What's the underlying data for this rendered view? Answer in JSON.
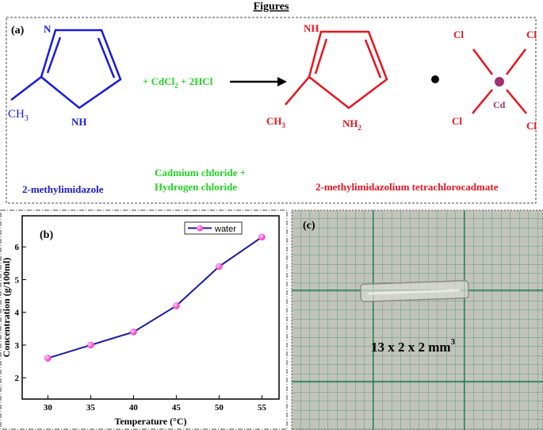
{
  "header": {
    "title": "Figures"
  },
  "panel_a": {
    "label": "(a)",
    "reactant": {
      "n": "N",
      "nh": "NH",
      "ch3": {
        "main": "CH",
        "sub": "3"
      },
      "caption": "2-methylimidazole"
    },
    "reagent": {
      "prefix": "+ CdCl",
      "sub": "2",
      "suffix": " + 2HCl",
      "caption_1": "Cadmium chloride +",
      "caption_2": "Hydrogen chloride"
    },
    "product": {
      "nh": "NH",
      "ch3": {
        "main": "CH",
        "sub": "3"
      },
      "nh2": {
        "main": "NH",
        "sub": "2"
      },
      "cl": [
        "Cl",
        "Cl",
        "Cl",
        "Cl"
      ],
      "cd": "Cd",
      "caption": "2-methylimidazolium tetrachlorocadmate"
    }
  },
  "chart_data": {
    "type": "line",
    "label": "(b)",
    "x_label": "Temperature (°C)",
    "y_label": "Concentration (g/100ml)",
    "series": [
      {
        "name": "water",
        "color": "#1a1aa0",
        "marker_color": "#ff33cc",
        "x": [
          30,
          35,
          40,
          45,
          50,
          55
        ],
        "values": [
          2.6,
          3.0,
          3.4,
          4.2,
          5.4,
          6.3
        ]
      }
    ],
    "xlim": [
      27,
      57
    ],
    "ylim": [
      1.35,
      6.95
    ],
    "xticks": [
      30,
      35,
      40,
      45,
      50,
      55
    ],
    "yticks": [
      2,
      3,
      4,
      5,
      6
    ],
    "grid": false,
    "legend": "upper right"
  },
  "panel_c": {
    "label": "(c)",
    "size": {
      "main": "13 x 2 x 2 mm",
      "sup": "3"
    }
  }
}
